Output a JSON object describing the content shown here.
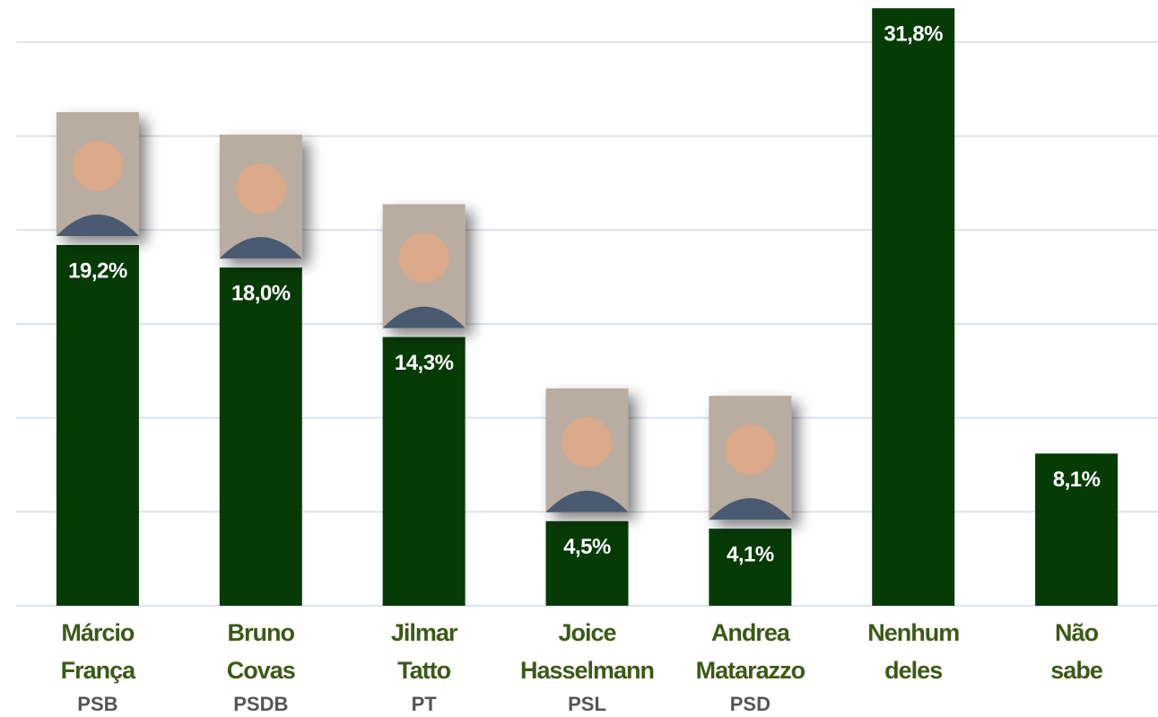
{
  "chart_data": {
    "type": "bar",
    "categories": [
      "Márcio França",
      "Bruno Covas",
      "Jilmar Tatto",
      "Joice Hasselmann",
      "Andrea Matarazzo",
      "Nenhum deles",
      "Não sabe"
    ],
    "parties": [
      "PSB",
      "PSDB",
      "PT",
      "PSL",
      "PSD",
      null,
      null
    ],
    "values": [
      19.2,
      18.0,
      14.3,
      4.5,
      4.1,
      31.8,
      8.1
    ],
    "value_labels": [
      "19,2%",
      "18,0%",
      "14,3%",
      "4,5%",
      "4,1%",
      "31,8%",
      "8,1%"
    ],
    "color": "#073b06",
    "ylim": [
      0,
      32
    ],
    "yticks": [
      0,
      5,
      10,
      15,
      20,
      25,
      30
    ],
    "grid": true
  }
}
